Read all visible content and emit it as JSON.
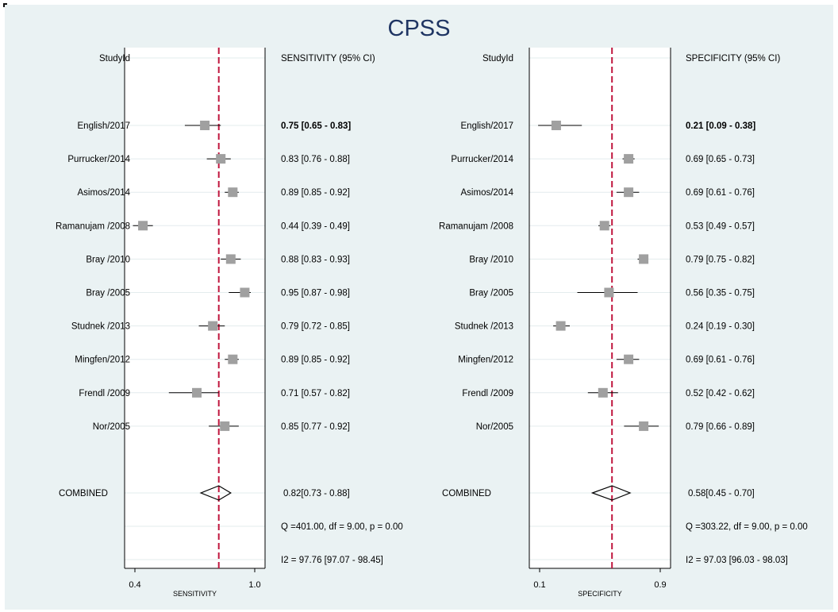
{
  "title": "CPSS",
  "row_labels": {
    "studies": [
      "English/2017",
      "Purrucker/2014",
      "Asimos/2014",
      "Ramanujam /2008",
      "Bray /2010",
      "Bray /2005",
      "Studnek /2013",
      "Mingfen/2012",
      "Frendl /2009",
      "Nor/2005"
    ],
    "combined": "COMBINED"
  },
  "chart_data": [
    {
      "type": "forest",
      "header_label": "StudyId",
      "header_ci": "SENSITIVITY (95% CI)",
      "xlabel": "SENSITIVITY",
      "xlim": [
        0.4,
        1.0
      ],
      "ticks": [
        {
          "value": 0.4,
          "label": "0.4"
        },
        {
          "value": 1.0,
          "label": "1.0"
        }
      ],
      "reference_line": 0.82,
      "studies": [
        {
          "label": "English/2017",
          "est": 0.75,
          "lo": 0.65,
          "hi": 0.83,
          "text": "0.75 [0.65 - 0.83]",
          "bold": true
        },
        {
          "label": "Purrucker/2014",
          "est": 0.83,
          "lo": 0.76,
          "hi": 0.88,
          "text": "0.83 [0.76 - 0.88]",
          "bold": false
        },
        {
          "label": "Asimos/2014",
          "est": 0.89,
          "lo": 0.85,
          "hi": 0.92,
          "text": "0.89 [0.85 - 0.92]",
          "bold": false
        },
        {
          "label": "Ramanujam /2008",
          "est": 0.44,
          "lo": 0.39,
          "hi": 0.49,
          "text": "0.44 [0.39 - 0.49]",
          "bold": false
        },
        {
          "label": "Bray /2010",
          "est": 0.88,
          "lo": 0.83,
          "hi": 0.93,
          "text": "0.88 [0.83 - 0.93]",
          "bold": false
        },
        {
          "label": "Bray /2005",
          "est": 0.95,
          "lo": 0.87,
          "hi": 0.98,
          "text": "0.95 [0.87 - 0.98]",
          "bold": false
        },
        {
          "label": "Studnek /2013",
          "est": 0.79,
          "lo": 0.72,
          "hi": 0.85,
          "text": "0.79 [0.72 - 0.85]",
          "bold": false
        },
        {
          "label": "Mingfen/2012",
          "est": 0.89,
          "lo": 0.85,
          "hi": 0.92,
          "text": "0.89 [0.85 - 0.92]",
          "bold": false
        },
        {
          "label": "Frendl /2009",
          "est": 0.71,
          "lo": 0.57,
          "hi": 0.82,
          "text": "0.71 [0.57 - 0.82]",
          "bold": false
        },
        {
          "label": "Nor/2005",
          "est": 0.85,
          "lo": 0.77,
          "hi": 0.92,
          "text": "0.85 [0.77 - 0.92]",
          "bold": false
        }
      ],
      "combined": {
        "label": "COMBINED",
        "est": 0.82,
        "lo": 0.73,
        "hi": 0.88,
        "text": "0.82[0.73 - 0.88]"
      },
      "heterogeneity_q": "Q =401.00, df = 9.00, p =  0.00",
      "heterogeneity_i2": "I2 = 97.76 [97.07 - 98.45]"
    },
    {
      "type": "forest",
      "header_label": "StudyId",
      "header_ci": "SPECIFICITY (95% CI)",
      "xlabel": "SPECIFICITY",
      "xlim": [
        0.1,
        0.9
      ],
      "ticks": [
        {
          "value": 0.1,
          "label": "0.1"
        },
        {
          "value": 0.9,
          "label": "0.9"
        }
      ],
      "reference_line": 0.58,
      "studies": [
        {
          "label": "English/2017",
          "est": 0.21,
          "lo": 0.09,
          "hi": 0.38,
          "text": "0.21 [0.09 - 0.38]",
          "bold": true
        },
        {
          "label": "Purrucker/2014",
          "est": 0.69,
          "lo": 0.65,
          "hi": 0.73,
          "text": "0.69 [0.65 - 0.73]",
          "bold": false
        },
        {
          "label": "Asimos/2014",
          "est": 0.69,
          "lo": 0.61,
          "hi": 0.76,
          "text": "0.69 [0.61 - 0.76]",
          "bold": false
        },
        {
          "label": "Ramanujam /2008",
          "est": 0.53,
          "lo": 0.49,
          "hi": 0.57,
          "text": "0.53 [0.49 - 0.57]",
          "bold": false
        },
        {
          "label": "Bray /2010",
          "est": 0.79,
          "lo": 0.75,
          "hi": 0.82,
          "text": "0.79 [0.75 - 0.82]",
          "bold": false
        },
        {
          "label": "Bray /2005",
          "est": 0.56,
          "lo": 0.35,
          "hi": 0.75,
          "text": "0.56 [0.35 - 0.75]",
          "bold": false
        },
        {
          "label": "Studnek /2013",
          "est": 0.24,
          "lo": 0.19,
          "hi": 0.3,
          "text": "0.24 [0.19 - 0.30]",
          "bold": false
        },
        {
          "label": "Mingfen/2012",
          "est": 0.69,
          "lo": 0.61,
          "hi": 0.76,
          "text": "0.69 [0.61 - 0.76]",
          "bold": false
        },
        {
          "label": "Frendl /2009",
          "est": 0.52,
          "lo": 0.42,
          "hi": 0.62,
          "text": "0.52 [0.42 - 0.62]",
          "bold": false
        },
        {
          "label": "Nor/2005",
          "est": 0.79,
          "lo": 0.66,
          "hi": 0.89,
          "text": "0.79 [0.66 - 0.89]",
          "bold": false
        }
      ],
      "combined": {
        "label": "COMBINED",
        "est": 0.58,
        "lo": 0.45,
        "hi": 0.7,
        "text": "0.58[0.45 - 0.70]"
      },
      "heterogeneity_q": "Q =303.22, df = 9.00, p =  0.00",
      "heterogeneity_i2": "I2 = 97.03 [96.03 - 98.03]"
    }
  ],
  "colors": {
    "background": "#eaf2f3",
    "title": "#1f3563",
    "reference_line": "#c0163e",
    "marker": "#a0a0a0",
    "plot_bg": "#ffffff"
  }
}
